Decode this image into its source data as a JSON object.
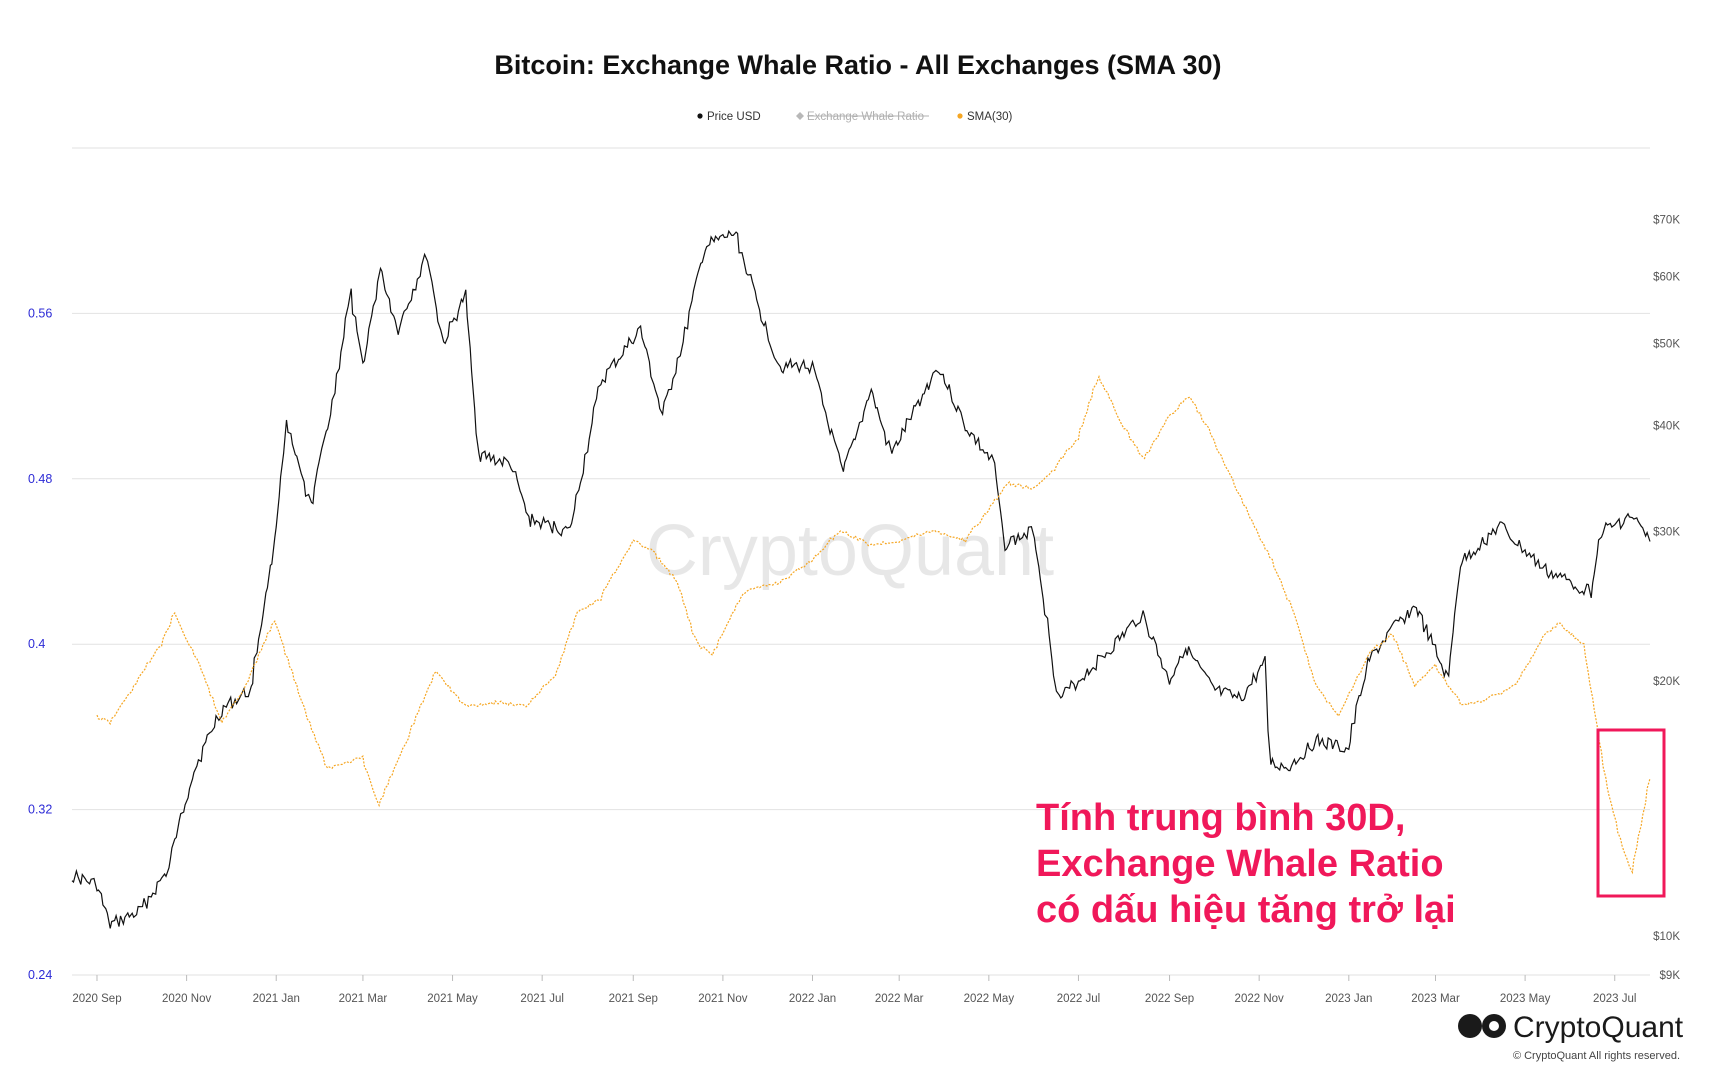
{
  "chart_data": {
    "type": "line",
    "title": "Bitcoin: Exchange Whale Ratio - All Exchanges (SMA 30)",
    "legend": [
      {
        "name": "Price USD",
        "color": "#111111",
        "active": true
      },
      {
        "name": "Exchange Whale Ratio",
        "color": "#b8b8b8",
        "active": false
      },
      {
        "name": "SMA(30)",
        "color": "#f5a623",
        "active": true
      }
    ],
    "x_tick_labels": [
      "2020 Sep",
      "2020 Nov",
      "2021 Jan",
      "2021 Mar",
      "2021 May",
      "2021 Jul",
      "2021 Sep",
      "2021 Nov",
      "2022 Jan",
      "2022 Mar",
      "2022 May",
      "2022 Jul",
      "2022 Sep",
      "2022 Nov",
      "2023 Jan",
      "2023 Mar",
      "2023 May",
      "2023 Jul"
    ],
    "x_range": [
      "2020-08-15",
      "2023-07-25"
    ],
    "left_axis": {
      "ticks": [
        0.24,
        0.32,
        0.4,
        0.48,
        0.56
      ],
      "tick_labels": [
        "0.24",
        "0.32",
        "0.4",
        "0.48",
        "0.56"
      ],
      "range": [
        0.24,
        0.64
      ]
    },
    "right_axis": {
      "scale": "log",
      "ticks": [
        9000,
        10000,
        20000,
        30000,
        40000,
        50000,
        60000,
        70000
      ],
      "tick_labels": [
        "$9K",
        "$10K",
        "$20K",
        "$30K",
        "$40K",
        "$50K",
        "$60K",
        "$70K"
      ],
      "range": [
        9000,
        85000
      ]
    },
    "grid": true,
    "legend_position": "top-center",
    "series": [
      {
        "name": "Price USD",
        "axis": "right",
        "color": "#111111",
        "points": [
          [
            "2020-08-15",
            11800
          ],
          [
            "2020-09-01",
            11500
          ],
          [
            "2020-09-10",
            10300
          ],
          [
            "2020-10-01",
            10700
          ],
          [
            "2020-10-20",
            12000
          ],
          [
            "2020-11-05",
            15500
          ],
          [
            "2020-11-25",
            18500
          ],
          [
            "2020-12-15",
            19500
          ],
          [
            "2020-12-31",
            29000
          ],
          [
            "2021-01-08",
            40000
          ],
          [
            "2021-01-25",
            32000
          ],
          [
            "2021-02-10",
            44000
          ],
          [
            "2021-02-21",
            57000
          ],
          [
            "2021-03-01",
            47000
          ],
          [
            "2021-03-13",
            61000
          ],
          [
            "2021-03-25",
            52000
          ],
          [
            "2021-04-14",
            63500
          ],
          [
            "2021-04-25",
            50000
          ],
          [
            "2021-05-10",
            57000
          ],
          [
            "2021-05-19",
            37000
          ],
          [
            "2021-06-10",
            36000
          ],
          [
            "2021-06-22",
            31000
          ],
          [
            "2021-07-20",
            30000
          ],
          [
            "2021-08-10",
            45000
          ],
          [
            "2021-09-06",
            52000
          ],
          [
            "2021-09-21",
            41000
          ],
          [
            "2021-10-05",
            50000
          ],
          [
            "2021-10-20",
            65000
          ],
          [
            "2021-11-10",
            67500
          ],
          [
            "2021-11-26",
            55000
          ],
          [
            "2021-12-10",
            47000
          ],
          [
            "2022-01-01",
            47000
          ],
          [
            "2022-01-22",
            35000
          ],
          [
            "2022-02-10",
            44000
          ],
          [
            "2022-02-24",
            37000
          ],
          [
            "2022-03-28",
            47000
          ],
          [
            "2022-04-15",
            40000
          ],
          [
            "2022-05-05",
            36000
          ],
          [
            "2022-05-12",
            29000
          ],
          [
            "2022-06-01",
            30000
          ],
          [
            "2022-06-18",
            19000
          ],
          [
            "2022-07-01",
            20000
          ],
          [
            "2022-07-25",
            22000
          ],
          [
            "2022-08-14",
            24000
          ],
          [
            "2022-09-01",
            20000
          ],
          [
            "2022-09-12",
            22000
          ],
          [
            "2022-10-01",
            19500
          ],
          [
            "2022-10-20",
            19000
          ],
          [
            "2022-11-05",
            21000
          ],
          [
            "2022-11-09",
            16000
          ],
          [
            "2022-11-21",
            15800
          ],
          [
            "2022-12-10",
            17000
          ],
          [
            "2023-01-01",
            16600
          ],
          [
            "2023-01-14",
            21000
          ],
          [
            "2023-01-31",
            23000
          ],
          [
            "2023-02-16",
            24500
          ],
          [
            "2023-03-10",
            20000
          ],
          [
            "2023-03-18",
            27500
          ],
          [
            "2023-04-14",
            30500
          ],
          [
            "2023-05-01",
            28500
          ],
          [
            "2023-05-15",
            27000
          ],
          [
            "2023-06-15",
            25500
          ],
          [
            "2023-06-22",
            30000
          ],
          [
            "2023-07-13",
            31300
          ],
          [
            "2023-07-25",
            29200
          ]
        ]
      },
      {
        "name": "SMA(30)",
        "axis": "left",
        "color": "#f5a623",
        "points": [
          [
            "2020-09-01",
            0.365
          ],
          [
            "2020-09-10",
            0.362
          ],
          [
            "2020-09-25",
            0.378
          ],
          [
            "2020-10-15",
            0.4
          ],
          [
            "2020-10-24",
            0.415
          ],
          [
            "2020-11-10",
            0.39
          ],
          [
            "2020-11-25",
            0.362
          ],
          [
            "2020-12-10",
            0.378
          ],
          [
            "2020-12-31",
            0.412
          ],
          [
            "2021-01-20",
            0.37
          ],
          [
            "2021-02-05",
            0.34
          ],
          [
            "2021-03-01",
            0.345
          ],
          [
            "2021-03-12",
            0.322
          ],
          [
            "2021-04-01",
            0.355
          ],
          [
            "2021-04-20",
            0.387
          ],
          [
            "2021-05-10",
            0.37
          ],
          [
            "2021-06-01",
            0.372
          ],
          [
            "2021-06-20",
            0.37
          ],
          [
            "2021-07-10",
            0.385
          ],
          [
            "2021-07-25",
            0.415
          ],
          [
            "2021-08-10",
            0.422
          ],
          [
            "2021-09-01",
            0.45
          ],
          [
            "2021-09-15",
            0.445
          ],
          [
            "2021-10-01",
            0.43
          ],
          [
            "2021-10-15",
            0.4
          ],
          [
            "2021-10-25",
            0.395
          ],
          [
            "2021-11-15",
            0.425
          ],
          [
            "2021-12-10",
            0.43
          ],
          [
            "2021-12-31",
            0.44
          ],
          [
            "2022-01-20",
            0.455
          ],
          [
            "2022-02-10",
            0.448
          ],
          [
            "2022-03-01",
            0.45
          ],
          [
            "2022-03-25",
            0.455
          ],
          [
            "2022-04-15",
            0.45
          ],
          [
            "2022-05-01",
            0.465
          ],
          [
            "2022-05-15",
            0.478
          ],
          [
            "2022-06-01",
            0.475
          ],
          [
            "2022-06-15",
            0.485
          ],
          [
            "2022-07-01",
            0.5
          ],
          [
            "2022-07-15",
            0.53
          ],
          [
            "2022-08-01",
            0.505
          ],
          [
            "2022-08-15",
            0.49
          ],
          [
            "2022-09-01",
            0.51
          ],
          [
            "2022-09-15",
            0.52
          ],
          [
            "2022-10-01",
            0.5
          ],
          [
            "2022-10-20",
            0.47
          ],
          [
            "2022-11-10",
            0.44
          ],
          [
            "2022-11-25",
            0.415
          ],
          [
            "2022-12-10",
            0.38
          ],
          [
            "2022-12-25",
            0.365
          ],
          [
            "2023-01-15",
            0.395
          ],
          [
            "2023-01-31",
            0.405
          ],
          [
            "2023-02-15",
            0.38
          ],
          [
            "2023-03-01",
            0.39
          ],
          [
            "2023-03-20",
            0.37
          ],
          [
            "2023-04-10",
            0.375
          ],
          [
            "2023-04-25",
            0.38
          ],
          [
            "2023-05-15",
            0.405
          ],
          [
            "2023-05-25",
            0.41
          ],
          [
            "2023-06-10",
            0.4
          ],
          [
            "2023-06-25",
            0.335
          ],
          [
            "2023-07-05",
            0.305
          ],
          [
            "2023-07-13",
            0.29
          ],
          [
            "2023-07-25",
            0.335
          ]
        ]
      }
    ]
  },
  "watermark": "CryptoQuant",
  "annotation": {
    "lines": [
      "Tính trung bình 30D,",
      "Exchange Whale Ratio",
      "có dấu hiệu tăng trở lại"
    ],
    "color": "#f0185a"
  },
  "highlight_box_color": "#f0185a",
  "brand": {
    "name": "CryptoQuant",
    "copyright": "© CryptoQuant All rights reserved."
  }
}
